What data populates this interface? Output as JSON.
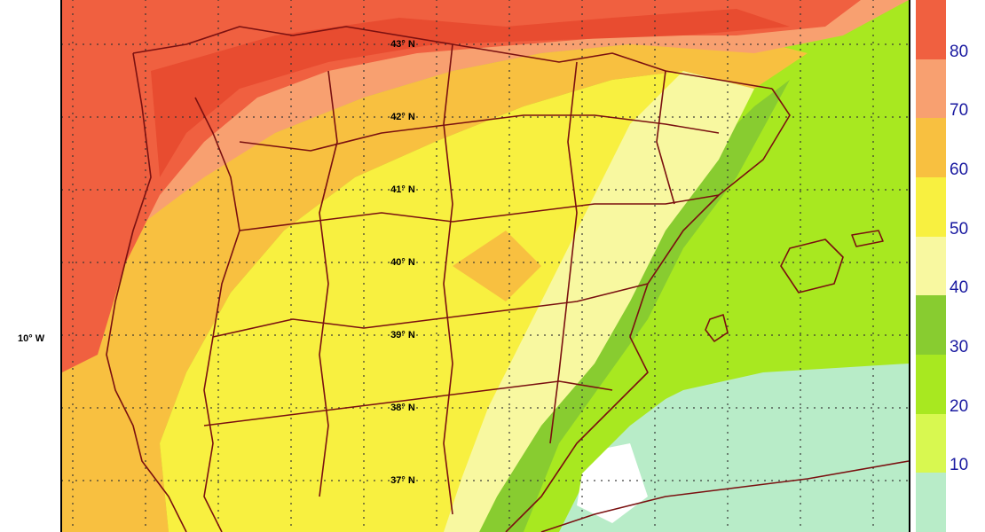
{
  "lat_labels": [
    {
      "text": "43° N",
      "lat": 43
    },
    {
      "text": "42° N",
      "lat": 42
    },
    {
      "text": "41° N",
      "lat": 41
    },
    {
      "text": "40° N",
      "lat": 40
    },
    {
      "text": "39° N",
      "lat": 39
    },
    {
      "text": "38° N",
      "lat": 38
    },
    {
      "text": "37° N",
      "lat": 37
    }
  ],
  "lon_label": "10° W",
  "legend": {
    "ticks": [
      "80",
      "70",
      "60",
      "50",
      "40",
      "30",
      "20",
      "10"
    ],
    "bands": [
      {
        "color": "#f06040"
      },
      {
        "color": "#f8a070"
      },
      {
        "color": "#f8c040"
      },
      {
        "color": "#f8f040"
      },
      {
        "color": "#f8f8a0"
      },
      {
        "color": "#88cc30"
      },
      {
        "color": "#a8e820"
      },
      {
        "color": "#d8f850"
      },
      {
        "color": "#b8ecc8"
      }
    ]
  },
  "colors": {
    "red": "#f06040",
    "salmon": "#f8a070",
    "orange": "#f8c040",
    "yellow": "#f8f040",
    "paleyellow": "#f8f8a0",
    "green": "#88cc30",
    "lime": "#a8e820",
    "lightgreen": "#d8f850",
    "mint": "#b8ecc8",
    "border": "#7a1010"
  }
}
